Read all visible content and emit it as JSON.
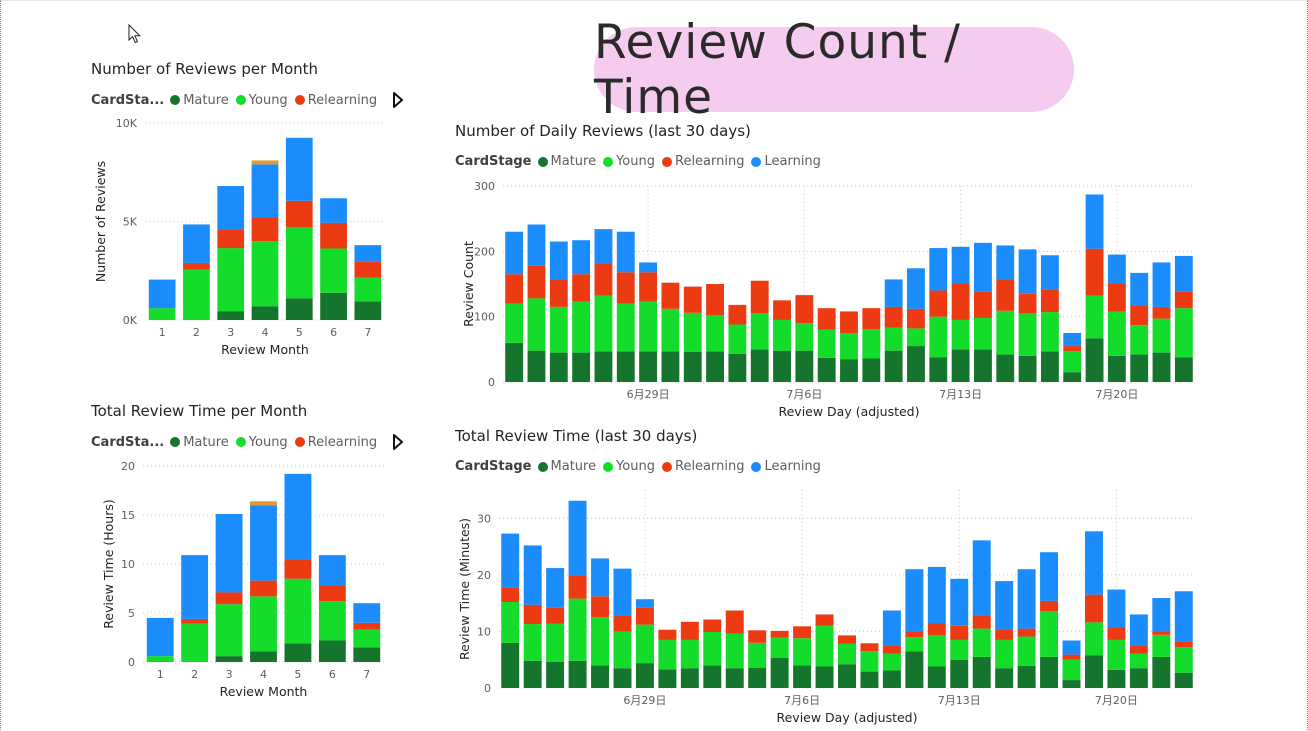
{
  "page": {
    "banner": "Review Count / Time"
  },
  "colors": {
    "Mature": "#16752c",
    "Young": "#13dc2a",
    "Relearning": "#ec3a12",
    "Learning": "#1a8cfb",
    "Extra": "#e09830"
  },
  "chart_data": [
    {
      "id": "reviews_month",
      "type": "bar",
      "title": "Number of Reviews per Month",
      "legend_title": "CardSta...",
      "legend": [
        "Mature",
        "Young",
        "Relearning"
      ],
      "xlabel": "Review Month",
      "ylabel": "Number of Reviews",
      "categories": [
        "1",
        "2",
        "3",
        "4",
        "5",
        "6",
        "7"
      ],
      "ylim": [
        0,
        10000
      ],
      "yticks": [
        0,
        5000,
        10000
      ],
      "ytick_labels": [
        "0K",
        "5K",
        "10K"
      ],
      "series": [
        {
          "name": "Mature",
          "values": [
            0,
            0,
            450,
            700,
            1100,
            1380,
            950
          ]
        },
        {
          "name": "Young",
          "values": [
            600,
            2550,
            3200,
            3300,
            3600,
            2250,
            1200
          ]
        },
        {
          "name": "Relearning",
          "values": [
            0,
            350,
            950,
            1200,
            1350,
            1300,
            800
          ]
        },
        {
          "name": "Learning",
          "values": [
            1450,
            1950,
            2200,
            2700,
            3200,
            1250,
            850
          ]
        },
        {
          "name": "",
          "values": [
            0,
            0,
            0,
            200,
            0,
            0,
            0
          ]
        }
      ]
    },
    {
      "id": "daily_reviews",
      "type": "bar",
      "title": "Number of Daily Reviews (last 30 days)",
      "legend_title": "CardStage",
      "legend": [
        "Mature",
        "Young",
        "Relearning",
        "Learning"
      ],
      "xlabel": "Review Day (adjusted)",
      "ylabel": "Review Count",
      "ylim": [
        0,
        300
      ],
      "yticks": [
        0,
        100,
        200,
        300
      ],
      "x_tick_labels": [
        {
          "index": 6,
          "label": "6月29日"
        },
        {
          "index": 13,
          "label": "7月6日"
        },
        {
          "index": 20,
          "label": "7月13日"
        },
        {
          "index": 27,
          "label": "7月20日"
        }
      ],
      "series": [
        {
          "name": "Mature",
          "values": [
            60,
            48,
            45,
            45,
            47,
            47,
            47,
            47,
            46,
            47,
            43,
            50,
            48,
            48,
            37,
            35,
            36,
            48,
            55,
            38,
            50,
            50,
            42,
            40,
            47,
            15,
            67,
            40,
            42,
            45,
            38
          ]
        },
        {
          "name": "Young",
          "values": [
            60,
            80,
            70,
            78,
            85,
            73,
            76,
            65,
            60,
            55,
            45,
            55,
            47,
            42,
            43,
            40,
            45,
            35,
            27,
            62,
            45,
            48,
            67,
            65,
            60,
            32,
            65,
            68,
            45,
            52,
            75
          ]
        },
        {
          "name": "Relearning",
          "values": [
            45,
            50,
            42,
            42,
            50,
            48,
            45,
            40,
            40,
            48,
            30,
            50,
            30,
            43,
            33,
            33,
            32,
            32,
            30,
            40,
            55,
            40,
            48,
            30,
            35,
            8,
            72,
            42,
            30,
            18,
            25
          ]
        },
        {
          "name": "Learning",
          "values": [
            65,
            63,
            58,
            52,
            52,
            62,
            15,
            0,
            0,
            0,
            0,
            0,
            0,
            0,
            0,
            0,
            0,
            42,
            62,
            65,
            57,
            75,
            52,
            68,
            52,
            20,
            83,
            45,
            50,
            68,
            55
          ]
        }
      ]
    },
    {
      "id": "time_month",
      "type": "bar",
      "title": "Total Review Time per Month",
      "legend_title": "CardSta...",
      "legend": [
        "Mature",
        "Young",
        "Relearning"
      ],
      "xlabel": "Review Month",
      "ylabel": "Review Time (Hours)",
      "categories": [
        "1",
        "2",
        "3",
        "4",
        "5",
        "6",
        "7"
      ],
      "ylim": [
        0,
        20
      ],
      "yticks": [
        0,
        5,
        10,
        15,
        20
      ],
      "series": [
        {
          "name": "Mature",
          "values": [
            0,
            0,
            0.6,
            1.1,
            1.9,
            2.2,
            1.5
          ]
        },
        {
          "name": "Young",
          "values": [
            0.6,
            3.9,
            5.3,
            5.6,
            6.6,
            4.0,
            1.8
          ]
        },
        {
          "name": "Relearning",
          "values": [
            0,
            0.5,
            1.2,
            1.6,
            2.0,
            1.6,
            0.7
          ]
        },
        {
          "name": "Learning",
          "values": [
            3.9,
            6.5,
            8.0,
            7.7,
            8.7,
            3.1,
            2.0
          ]
        },
        {
          "name": "",
          "values": [
            0,
            0,
            0,
            0.4,
            0,
            0,
            0
          ]
        }
      ]
    },
    {
      "id": "daily_time",
      "type": "bar",
      "title": "Total Review Time (last 30 days)",
      "legend_title": "CardStage",
      "legend": [
        "Mature",
        "Young",
        "Relearning",
        "Learning"
      ],
      "xlabel": "Review Day (adjusted)",
      "ylabel": "Review Time (Minutes)",
      "ylim": [
        0,
        35
      ],
      "yticks": [
        0,
        10,
        20,
        30
      ],
      "x_tick_labels": [
        {
          "index": 6,
          "label": "6月29日"
        },
        {
          "index": 13,
          "label": "7月6日"
        },
        {
          "index": 20,
          "label": "7月13日"
        },
        {
          "index": 27,
          "label": "7月20日"
        }
      ],
      "series": [
        {
          "name": "Mature",
          "values": [
            8,
            4.8,
            4.6,
            4.8,
            4,
            3.5,
            4.4,
            3.3,
            3.5,
            4,
            3.5,
            3.6,
            5.3,
            4,
            3.8,
            4.2,
            2.9,
            3.1,
            6.5,
            3.8,
            5,
            5.5,
            3.5,
            3.9,
            5.5,
            1.4,
            5.8,
            3.2,
            3.5,
            5.5,
            2.7
          ]
        },
        {
          "name": "Young",
          "values": [
            7.2,
            6.5,
            6.8,
            11,
            8.5,
            6.5,
            6.8,
            5.2,
            5,
            5.9,
            6.1,
            4.4,
            3.6,
            4.8,
            7.2,
            3.6,
            3.6,
            3,
            2.5,
            5.5,
            3.5,
            5,
            5,
            5.2,
            8.1,
            3.6,
            5.8,
            5.3,
            2.6,
            3.9,
            4.5
          ]
        },
        {
          "name": "Relearning",
          "values": [
            2.6,
            3.4,
            2.8,
            4,
            3.7,
            2.8,
            3,
            1.8,
            3.2,
            2.2,
            4.1,
            2.2,
            1.2,
            2.1,
            2,
            1.5,
            1.4,
            1.4,
            1,
            2.1,
            2.5,
            2.3,
            1.9,
            1.4,
            1.8,
            0.9,
            4.9,
            2.2,
            1.4,
            0.6,
            1
          ]
        },
        {
          "name": "Learning",
          "values": [
            9.5,
            10.5,
            7,
            13.3,
            6.7,
            8.3,
            1.5,
            0,
            0,
            0,
            0,
            0,
            0,
            0,
            0,
            0,
            0,
            6.2,
            11,
            10,
            8.3,
            13.3,
            8.5,
            10.5,
            8.6,
            2.5,
            11.2,
            6.7,
            5.5,
            5.9,
            8.9
          ]
        }
      ]
    }
  ]
}
